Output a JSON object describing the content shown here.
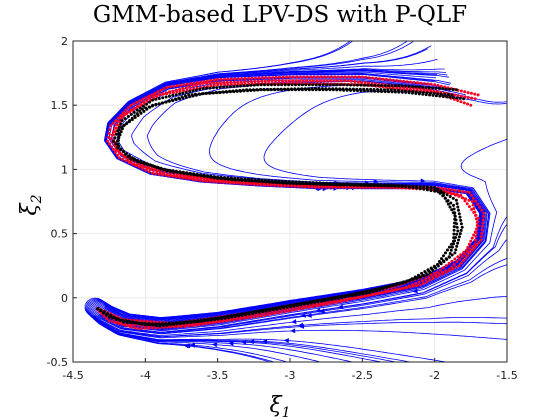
{
  "chart_data": {
    "type": "streamline",
    "title": "GMM-based LPV-DS with P-QLF",
    "xlabel": "ξ1",
    "ylabel": "ξ2",
    "xlabel_base": "ξ",
    "xlabel_sub": "1",
    "ylabel_base": "ξ",
    "ylabel_sub": "2",
    "xlim": [
      -4.5,
      -1.5
    ],
    "ylim": [
      -0.5,
      2
    ],
    "xticks": [
      "-4.5",
      "-4",
      "-3.5",
      "-3",
      "-2.5",
      "-2",
      "-1.5"
    ],
    "xtick_values": [
      -4.5,
      -4,
      -3.5,
      -3,
      -2.5,
      -2,
      -1.5
    ],
    "yticks": [
      "-0.5",
      "0",
      "0.5",
      "1",
      "1.5",
      "2"
    ],
    "ytick_values": [
      -0.5,
      0,
      0.5,
      1,
      1.5,
      2
    ],
    "attractor": [
      -4.35,
      -0.07
    ],
    "colors": {
      "streamlines": "#0000ff",
      "demonstrations": "#ff0022",
      "reproductions": "#000000"
    },
    "series": [
      {
        "name": "demonstrations",
        "color": "#ff0022",
        "trajectories": [
          [
            [
              -1.7,
              1.58
            ],
            [
              -2.0,
              1.66
            ],
            [
              -2.5,
              1.72
            ],
            [
              -3.0,
              1.72
            ],
            [
              -3.5,
              1.7
            ],
            [
              -3.85,
              1.64
            ],
            [
              -4.1,
              1.5
            ],
            [
              -4.24,
              1.34
            ],
            [
              -4.26,
              1.22
            ],
            [
              -4.18,
              1.09
            ],
            [
              -3.95,
              0.97
            ],
            [
              -3.6,
              0.91
            ],
            [
              -3.2,
              0.88
            ],
            [
              -2.8,
              0.86
            ],
            [
              -2.4,
              0.86
            ],
            [
              -2.0,
              0.86
            ],
            [
              -1.76,
              0.82
            ],
            [
              -1.66,
              0.66
            ],
            [
              -1.68,
              0.45
            ],
            [
              -1.83,
              0.25
            ],
            [
              -2.1,
              0.1
            ],
            [
              -2.5,
              0.01
            ],
            [
              -3.0,
              -0.08
            ],
            [
              -3.5,
              -0.18
            ],
            [
              -3.9,
              -0.23
            ],
            [
              -4.15,
              -0.2
            ],
            [
              -4.28,
              -0.13
            ],
            [
              -4.35,
              -0.07
            ]
          ],
          [
            [
              -1.75,
              1.5
            ],
            [
              -2.0,
              1.6
            ],
            [
              -2.5,
              1.66
            ],
            [
              -3.0,
              1.67
            ],
            [
              -3.5,
              1.66
            ],
            [
              -3.9,
              1.58
            ],
            [
              -4.15,
              1.42
            ],
            [
              -4.22,
              1.27
            ],
            [
              -4.2,
              1.15
            ],
            [
              -4.08,
              1.04
            ],
            [
              -3.85,
              0.96
            ],
            [
              -3.5,
              0.91
            ],
            [
              -3.1,
              0.89
            ],
            [
              -2.7,
              0.87
            ],
            [
              -2.3,
              0.86
            ],
            [
              -1.95,
              0.84
            ],
            [
              -1.74,
              0.75
            ],
            [
              -1.7,
              0.56
            ],
            [
              -1.78,
              0.37
            ],
            [
              -1.98,
              0.2
            ],
            [
              -2.3,
              0.08
            ],
            [
              -2.8,
              -0.02
            ],
            [
              -3.3,
              -0.12
            ],
            [
              -3.8,
              -0.2
            ],
            [
              -4.15,
              -0.17
            ],
            [
              -4.35,
              -0.07
            ]
          ],
          [
            [
              -1.72,
              1.55
            ],
            [
              -2.1,
              1.63
            ],
            [
              -2.6,
              1.69
            ],
            [
              -3.1,
              1.69
            ],
            [
              -3.6,
              1.67
            ],
            [
              -3.95,
              1.57
            ],
            [
              -4.18,
              1.4
            ],
            [
              -4.24,
              1.24
            ],
            [
              -4.17,
              1.12
            ],
            [
              -4.0,
              1.02
            ],
            [
              -3.7,
              0.95
            ],
            [
              -3.3,
              0.9
            ],
            [
              -2.9,
              0.88
            ],
            [
              -2.5,
              0.87
            ],
            [
              -2.1,
              0.86
            ],
            [
              -1.82,
              0.8
            ],
            [
              -1.7,
              0.62
            ],
            [
              -1.72,
              0.42
            ],
            [
              -1.9,
              0.22
            ],
            [
              -2.2,
              0.08
            ],
            [
              -2.7,
              -0.04
            ],
            [
              -3.2,
              -0.14
            ],
            [
              -3.7,
              -0.22
            ],
            [
              -4.05,
              -0.24
            ],
            [
              -4.25,
              -0.18
            ],
            [
              -4.35,
              -0.07
            ]
          ]
        ]
      },
      {
        "name": "reproductions",
        "color": "#000000",
        "trajectories": [
          [
            [
              -1.85,
              1.62
            ],
            [
              -2.2,
              1.65
            ],
            [
              -2.7,
              1.66
            ],
            [
              -3.2,
              1.66
            ],
            [
              -3.6,
              1.63
            ],
            [
              -3.95,
              1.54
            ],
            [
              -4.16,
              1.38
            ],
            [
              -4.22,
              1.22
            ],
            [
              -4.12,
              1.1
            ],
            [
              -3.88,
              1.0
            ],
            [
              -3.5,
              0.94
            ],
            [
              -3.1,
              0.91
            ],
            [
              -2.7,
              0.89
            ],
            [
              -2.3,
              0.88
            ],
            [
              -2.0,
              0.86
            ],
            [
              -1.85,
              0.76
            ],
            [
              -1.81,
              0.55
            ],
            [
              -1.86,
              0.35
            ],
            [
              -2.05,
              0.18
            ],
            [
              -2.4,
              0.06
            ],
            [
              -2.9,
              -0.04
            ],
            [
              -3.4,
              -0.14
            ],
            [
              -3.85,
              -0.21
            ],
            [
              -4.15,
              -0.19
            ],
            [
              -4.35,
              -0.07
            ]
          ],
          [
            [
              -1.8,
              1.55
            ],
            [
              -2.2,
              1.6
            ],
            [
              -2.7,
              1.62
            ],
            [
              -3.2,
              1.62
            ],
            [
              -3.6,
              1.59
            ],
            [
              -3.95,
              1.5
            ],
            [
              -4.15,
              1.34
            ],
            [
              -4.2,
              1.2
            ],
            [
              -4.1,
              1.08
            ],
            [
              -3.85,
              0.99
            ],
            [
              -3.5,
              0.93
            ],
            [
              -3.1,
              0.9
            ],
            [
              -2.7,
              0.88
            ],
            [
              -2.3,
              0.87
            ],
            [
              -2.0,
              0.85
            ],
            [
              -1.87,
              0.72
            ],
            [
              -1.84,
              0.52
            ],
            [
              -1.9,
              0.32
            ],
            [
              -2.1,
              0.16
            ],
            [
              -2.45,
              0.04
            ],
            [
              -2.95,
              -0.06
            ],
            [
              -3.45,
              -0.16
            ],
            [
              -3.9,
              -0.22
            ],
            [
              -4.2,
              -0.17
            ],
            [
              -4.35,
              -0.07
            ]
          ],
          [
            [
              -1.88,
              1.58
            ],
            [
              -2.3,
              1.62
            ],
            [
              -2.8,
              1.63
            ],
            [
              -3.3,
              1.62
            ],
            [
              -3.7,
              1.58
            ],
            [
              -4.02,
              1.47
            ],
            [
              -4.18,
              1.31
            ],
            [
              -4.19,
              1.17
            ],
            [
              -4.05,
              1.06
            ],
            [
              -3.8,
              0.98
            ],
            [
              -3.4,
              0.92
            ],
            [
              -3.0,
              0.89
            ],
            [
              -2.6,
              0.88
            ],
            [
              -2.2,
              0.87
            ],
            [
              -1.95,
              0.82
            ],
            [
              -1.86,
              0.64
            ],
            [
              -1.87,
              0.44
            ],
            [
              -1.98,
              0.26
            ],
            [
              -2.2,
              0.12
            ],
            [
              -2.6,
              0.02
            ],
            [
              -3.1,
              -0.08
            ],
            [
              -3.6,
              -0.18
            ],
            [
              -4.0,
              -0.21
            ],
            [
              -4.25,
              -0.15
            ],
            [
              -4.35,
              -0.07
            ]
          ]
        ]
      }
    ]
  }
}
